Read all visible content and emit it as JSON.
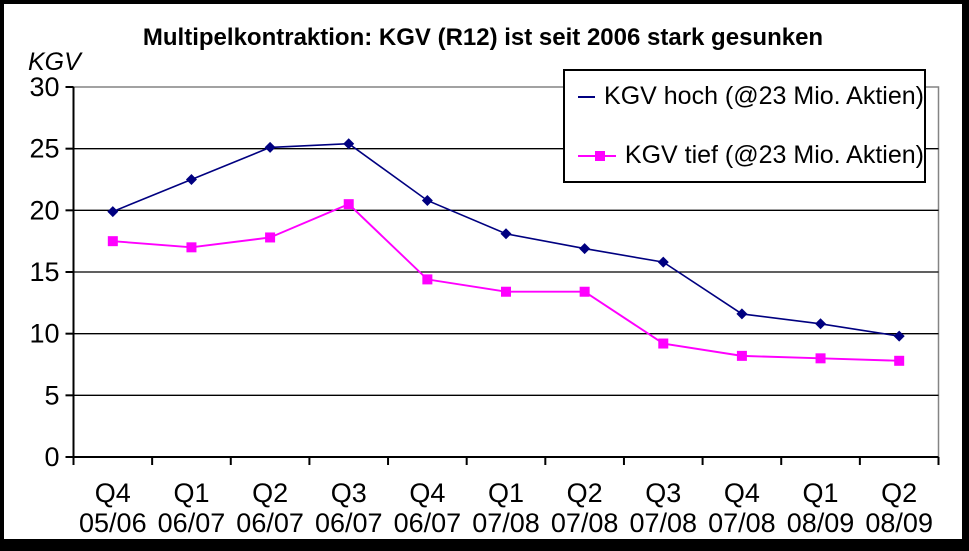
{
  "chart_data": {
    "type": "line",
    "title": "Multipelkontraktion: KGV (R12) ist seit 2006 stark gesunken",
    "ylabel": "KGV",
    "xlabel": "",
    "categories": [
      "Q4 05/06",
      "Q1 06/07",
      "Q2 06/07",
      "Q3 06/07",
      "Q4 06/07",
      "Q1 07/08",
      "Q2 07/08",
      "Q3 07/08",
      "Q4 07/08",
      "Q1 08/09",
      "Q2 08/09"
    ],
    "series": [
      {
        "name": "KGV hoch (@23 Mio. Aktien)",
        "color": "#000080",
        "marker": "diamond",
        "values": [
          19.9,
          22.5,
          25.1,
          25.4,
          20.8,
          18.1,
          16.9,
          15.8,
          11.6,
          10.8,
          9.8
        ]
      },
      {
        "name": "KGV tief (@23 Mio. Aktien)",
        "color": "#FF00FF",
        "marker": "square",
        "values": [
          17.5,
          17.0,
          17.8,
          20.5,
          14.4,
          13.4,
          13.4,
          9.2,
          8.2,
          8.0,
          7.8
        ]
      }
    ],
    "ylim": [
      0,
      30
    ],
    "yticks": [
      0,
      5,
      10,
      15,
      20,
      25,
      30
    ],
    "grid": true,
    "gridline_color": "#000000",
    "axis_color": "#000000",
    "plot_border_color": "#848484",
    "legend_position": "top-right"
  }
}
